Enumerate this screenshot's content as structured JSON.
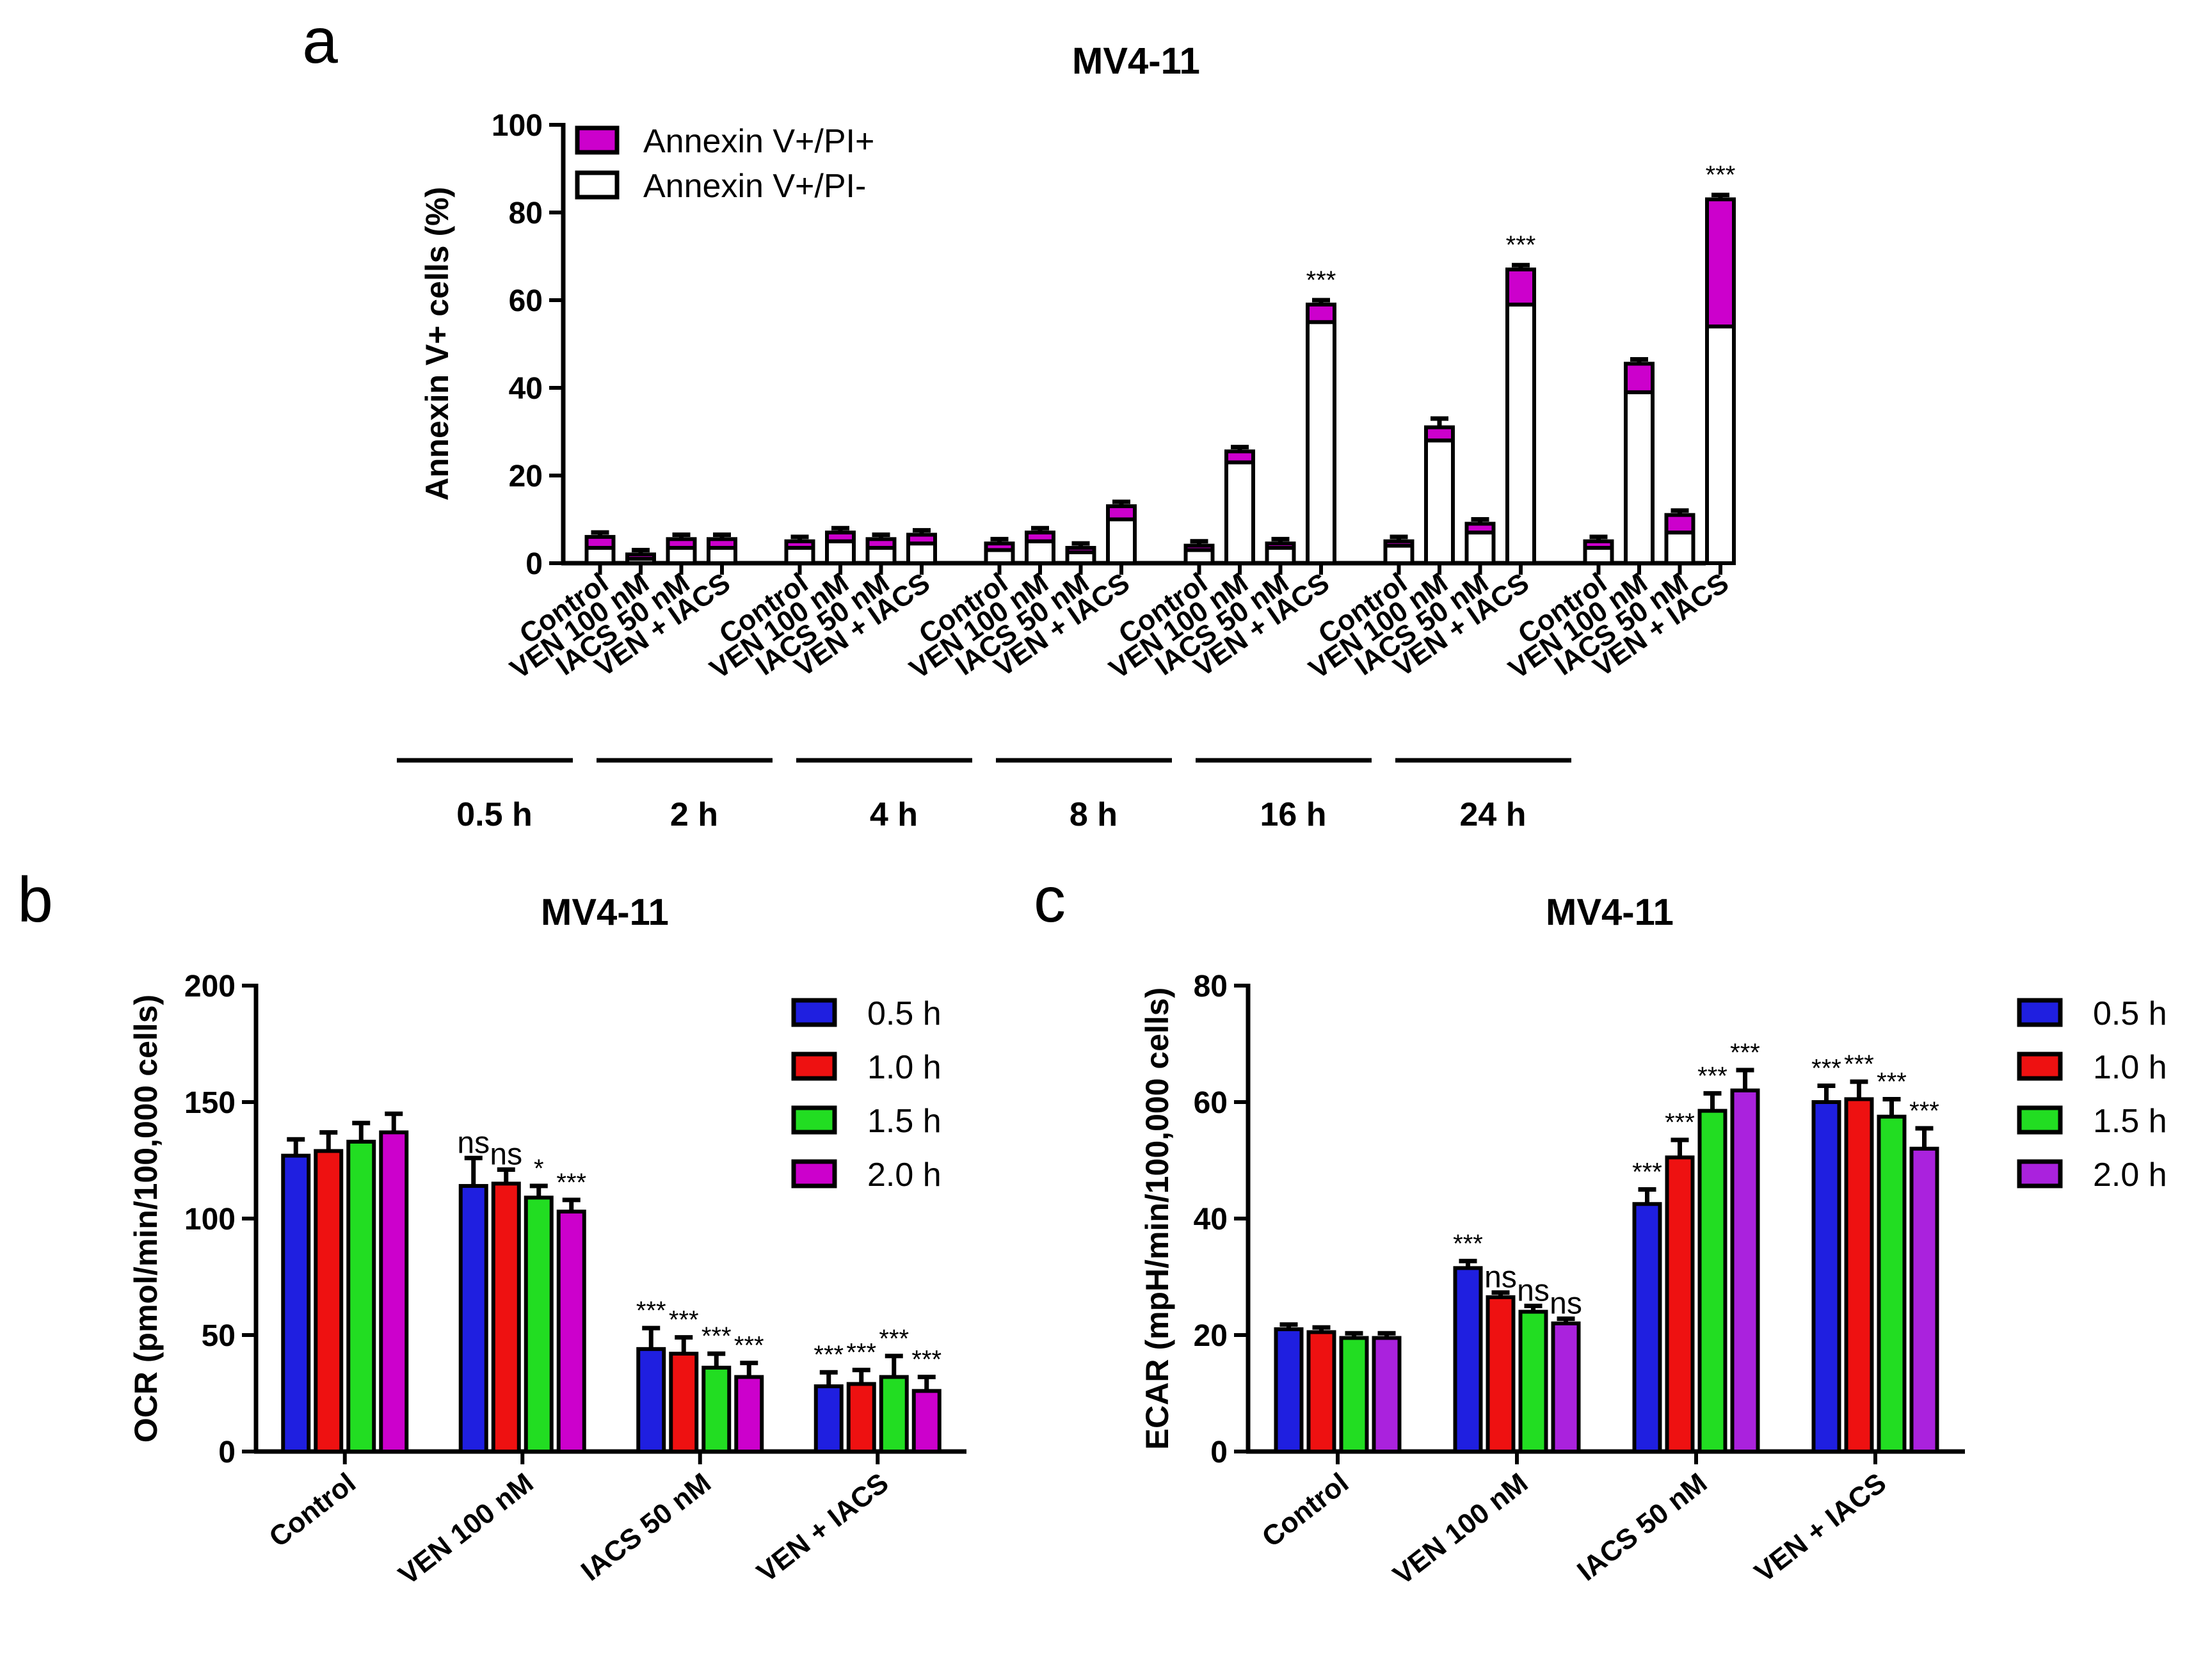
{
  "panels": {
    "a": "a",
    "b": "b",
    "c": "c"
  },
  "colors": {
    "annexin_pi_pos": "#cc00cc",
    "annexin_pi_neg": "#ffffff",
    "blue": "#1f1fe0",
    "red": "#ee1111",
    "green": "#22dd22",
    "magenta": "#cc00cc",
    "purple": "#aa22dd"
  },
  "chart_data": [
    {
      "id": "a",
      "type": "bar",
      "stacked": true,
      "title": "MV4-11",
      "ylabel": "Annexin V+ cells (%)",
      "ylim": [
        0,
        100
      ],
      "yticks": [
        0,
        20,
        40,
        60,
        80,
        100
      ],
      "legend": [
        "Annexin V+/PI+",
        "Annexin V+/PI-"
      ],
      "legend_position": "top-left",
      "groups": [
        "0.5 h",
        "2 h",
        "4 h",
        "8 h",
        "16 h",
        "24 h"
      ],
      "categories": [
        "Control",
        "VEN 100 nM",
        "IACS 50 nM",
        "VEN + IACS"
      ],
      "series": [
        {
          "name": "Annexin V+/PI-",
          "values": [
            [
              3.5,
              1,
              3.5,
              3.5
            ],
            [
              3.5,
              5,
              3.5,
              4.5
            ],
            [
              3,
              5,
              2.5,
              10
            ],
            [
              3,
              23,
              3.5,
              55
            ],
            [
              4,
              28,
              7,
              59
            ],
            [
              3.5,
              39,
              7,
              54
            ]
          ]
        },
        {
          "name": "Annexin V+/PI+",
          "values": [
            [
              2.5,
              1,
              2,
              2
            ],
            [
              1.5,
              2,
              2,
              2
            ],
            [
              1.5,
              2,
              1,
              3
            ],
            [
              1,
              2.5,
              1,
              4
            ],
            [
              1,
              3,
              2,
              8
            ],
            [
              1.5,
              6.5,
              4,
              29
            ]
          ]
        }
      ],
      "errors": [
        [
          1,
          1,
          1,
          1
        ],
        [
          1,
          1,
          1,
          1
        ],
        [
          1,
          1,
          1,
          1
        ],
        [
          1,
          1,
          1,
          1
        ],
        [
          1,
          2,
          1,
          1
        ],
        [
          1,
          1,
          1,
          1
        ]
      ],
      "significance": [
        [
          "",
          "",
          "",
          ""
        ],
        [
          "",
          "",
          "",
          ""
        ],
        [
          "",
          "",
          "",
          ""
        ],
        [
          "",
          "",
          "",
          "***"
        ],
        [
          "",
          "",
          "",
          "***"
        ],
        [
          "",
          "",
          "",
          "***"
        ]
      ]
    },
    {
      "id": "b",
      "type": "bar",
      "title": "MV4-11",
      "ylabel": "OCR (pmol/min/100,000 cells)",
      "ylim": [
        0,
        200
      ],
      "yticks": [
        0,
        50,
        100,
        150,
        200
      ],
      "categories": [
        "Control",
        "VEN 100 nM",
        "IACS 50 nM",
        "VEN + IACS"
      ],
      "legend_position": "top-right",
      "series": [
        {
          "name": "0.5 h",
          "values": [
            127,
            114,
            44,
            28
          ],
          "errors": [
            7,
            12,
            9,
            6
          ]
        },
        {
          "name": "1.0 h",
          "values": [
            129,
            115,
            42,
            29
          ],
          "errors": [
            8,
            6,
            7,
            6
          ]
        },
        {
          "name": "1.5 h",
          "values": [
            133,
            109,
            36,
            32
          ],
          "errors": [
            8,
            5,
            6,
            9
          ]
        },
        {
          "name": "2.0 h",
          "values": [
            137,
            103,
            32,
            26
          ],
          "errors": [
            8,
            5,
            6,
            6
          ]
        }
      ],
      "significance": [
        [
          "",
          "",
          "",
          ""
        ],
        [
          "ns",
          "ns",
          "*",
          "***"
        ],
        [
          "***",
          "***",
          "***",
          "***"
        ],
        [
          "***",
          "***",
          "***",
          "***"
        ]
      ]
    },
    {
      "id": "c",
      "type": "bar",
      "title": "MV4-11",
      "ylabel": "ECAR (mpH/min/100,000 cells)",
      "ylim": [
        0,
        80
      ],
      "yticks": [
        0,
        20,
        40,
        60,
        80
      ],
      "categories": [
        "Control",
        "VEN 100 nM",
        "IACS 50 nM",
        "VEN + IACS"
      ],
      "legend_position": "top-right",
      "series": [
        {
          "name": "0.5 h",
          "values": [
            21,
            31.5,
            42.5,
            60
          ],
          "errors": [
            0.8,
            1.2,
            2.5,
            2.8
          ]
        },
        {
          "name": "1.0 h",
          "values": [
            20.5,
            26.5,
            50.5,
            60.5
          ],
          "errors": [
            0.8,
            0.8,
            3,
            3
          ]
        },
        {
          "name": "1.5 h",
          "values": [
            19.5,
            24,
            58.5,
            57.5
          ],
          "errors": [
            0.8,
            1,
            3,
            3
          ]
        },
        {
          "name": "2.0 h",
          "values": [
            19.5,
            22,
            62,
            52
          ],
          "errors": [
            0.8,
            0.8,
            3.5,
            3.5
          ]
        }
      ],
      "significance": [
        [
          "",
          "",
          "",
          ""
        ],
        [
          "***",
          "ns",
          "ns",
          "ns"
        ],
        [
          "***",
          "***",
          "***",
          "***"
        ],
        [
          "***",
          "***",
          "***",
          "***"
        ]
      ]
    }
  ]
}
